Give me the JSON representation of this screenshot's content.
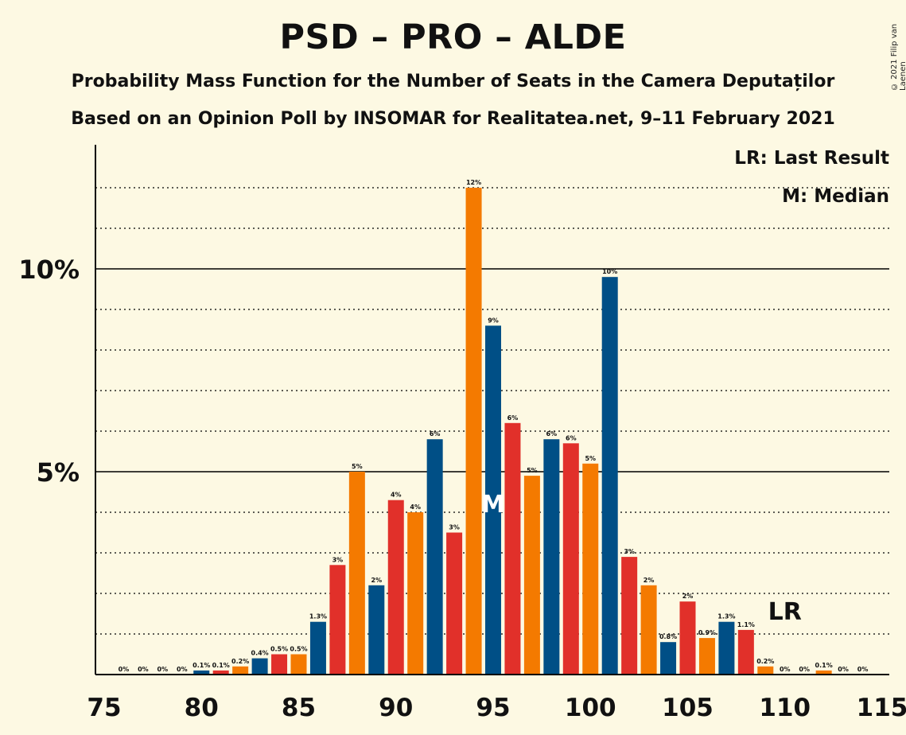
{
  "title": "PSD – PRO – ALDE",
  "subtitle1": "Probability Mass Function for the Number of Seats in the Camera Deputaților",
  "subtitle2": "Based on an Opinion Poll by INSOMAR for Realitatea.net, 9–11 February 2021",
  "copyright": "© 2021 Filip van Laenen",
  "legend": {
    "lr": "LR: Last Result",
    "m": "M: Median"
  },
  "colors": {
    "background": "#fdf9e3",
    "blue": "#004f86",
    "red": "#e1302a",
    "orange": "#f47a00"
  },
  "chart_data": {
    "type": "bar",
    "x": [
      76,
      77,
      78,
      79,
      80,
      81,
      82,
      83,
      84,
      85,
      86,
      87,
      88,
      89,
      90,
      91,
      92,
      93,
      94,
      95,
      96,
      97,
      98,
      99,
      100,
      101,
      102,
      103,
      104,
      105,
      106,
      107,
      108,
      109,
      110,
      111,
      112,
      113,
      114
    ],
    "values": [
      0,
      0,
      0,
      0,
      0.1,
      0.1,
      0.2,
      0.4,
      0.5,
      0.5,
      1.3,
      2.7,
      5.0,
      2.2,
      4.3,
      4.0,
      5.8,
      3.5,
      12.0,
      8.6,
      6.2,
      4.9,
      5.8,
      5.7,
      5.2,
      9.8,
      2.9,
      2.2,
      0.8,
      1.8,
      0.9,
      1.3,
      1.1,
      0.2,
      0,
      0,
      0.1,
      0,
      0
    ],
    "labels": [
      "0%",
      "0%",
      "0%",
      "0%",
      "0.1%",
      "0.1%",
      "0.2%",
      "0.4%",
      "0.5%",
      "0.5%",
      "1.3%",
      "3%",
      "5%",
      "2%",
      "4%",
      "4%",
      "6%",
      "3%",
      "12%",
      "9%",
      "6%",
      "5%",
      "6%",
      "6%",
      "5%",
      "10%",
      "3%",
      "2%",
      "0.8%",
      "2%",
      "0.9%",
      "1.3%",
      "1.1%",
      "0.2%",
      "0%",
      "0%",
      "0.1%",
      "0%",
      "0%"
    ],
    "bar_colors": [
      "blue",
      "blue",
      "red",
      "orange",
      "blue",
      "red",
      "orange",
      "blue",
      "red",
      "orange",
      "blue",
      "red",
      "orange",
      "blue",
      "red",
      "orange",
      "blue",
      "red",
      "orange",
      "blue",
      "red",
      "orange",
      "blue",
      "red",
      "orange",
      "blue",
      "red",
      "orange",
      "blue",
      "red",
      "orange",
      "blue",
      "red",
      "orange",
      "blue",
      "red",
      "orange",
      "blue",
      "red"
    ],
    "xticks": [
      75,
      80,
      85,
      90,
      95,
      100,
      105,
      110,
      115
    ],
    "yticks": [
      "5%",
      "10%"
    ],
    "ylim": [
      0,
      13
    ],
    "median": 95,
    "median_label": "M",
    "last_result": 110,
    "last_result_label": "LR"
  }
}
